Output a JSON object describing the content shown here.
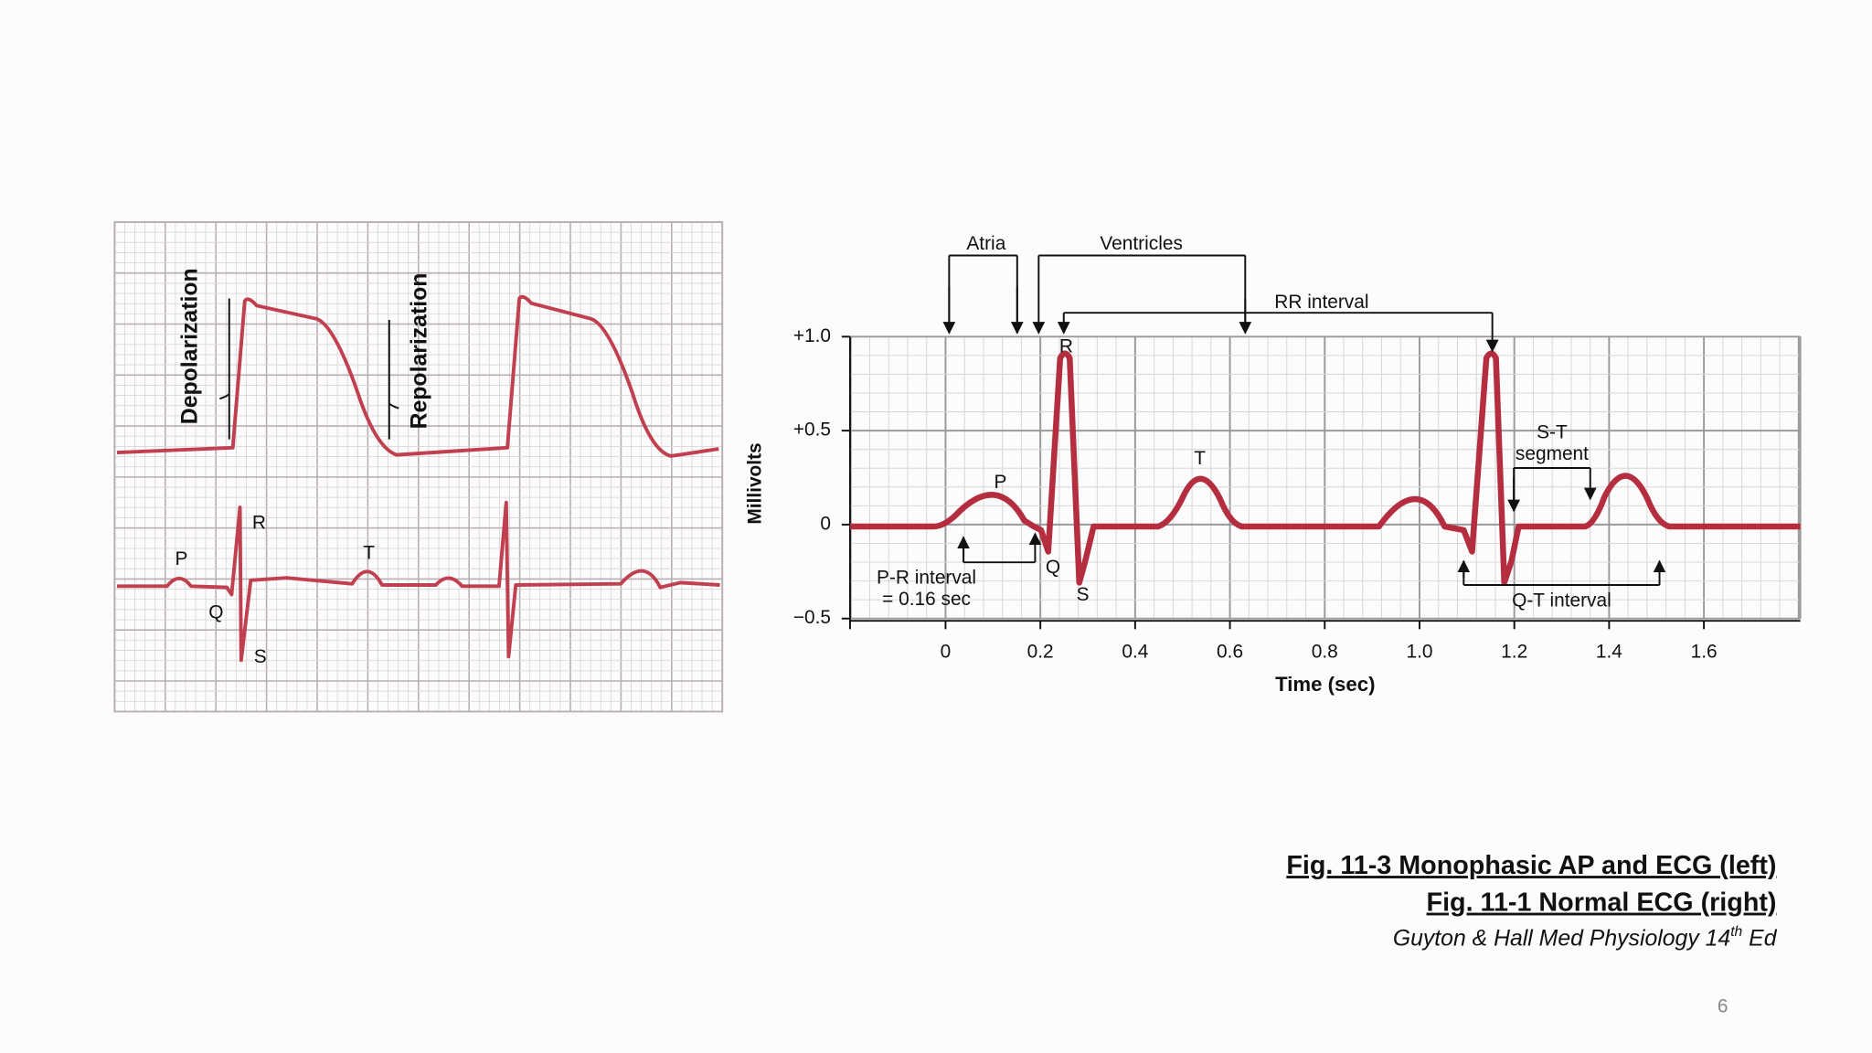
{
  "left_figure": {
    "action_potential_labels": [
      "Depolarization",
      "Repolarization"
    ],
    "wave_labels": [
      "P",
      "Q",
      "R",
      "S",
      "T"
    ]
  },
  "right_figure": {
    "y_axis_label": "Millivolts",
    "x_axis_label": "Time (sec)",
    "yticks": [
      "+1.0",
      "+0.5",
      "0",
      "−0.5"
    ],
    "xticks": [
      "0",
      "0.2",
      "0.4",
      "0.6",
      "0.8",
      "1.0",
      "1.2",
      "1.4",
      "1.6"
    ],
    "annotations": [
      "Atria",
      "Ventricles",
      "RR interval",
      "S-T",
      "segment",
      "P-R interval",
      "= 0.16 sec",
      "Q-T interval"
    ],
    "wave_labels": [
      "P",
      "R",
      "Q",
      "S",
      "T"
    ]
  },
  "caption": {
    "lines": [
      "Fig. 11-3 Monophasic AP and ECG (left)",
      "Fig. 11-1 Normal ECG (right)"
    ],
    "citation": {
      "text": "Guyton & Hall Med Physiology 14",
      "superscript": "th",
      "suffix": " Ed"
    }
  },
  "page_number": "6"
}
